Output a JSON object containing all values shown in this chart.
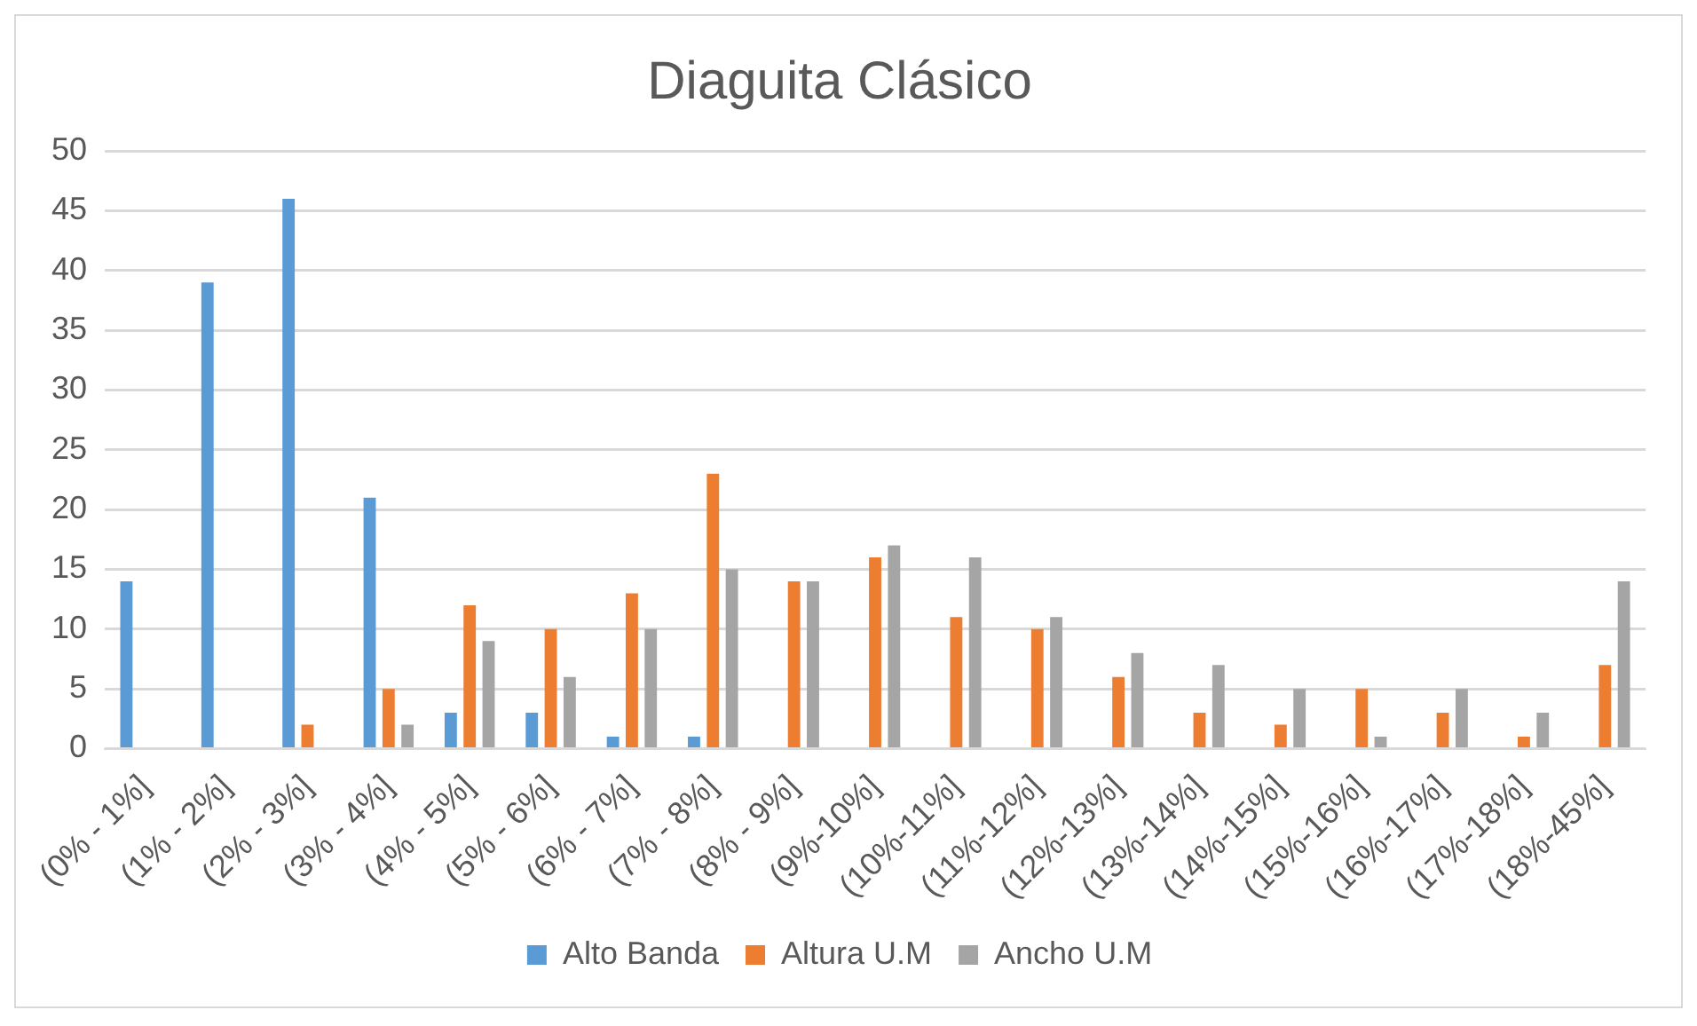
{
  "chart_data": {
    "type": "bar",
    "title": "Diaguita Clásico",
    "categories": [
      "(0% - 1%]",
      "(1% - 2%]",
      "(2% - 3%]",
      "(3% - 4%]",
      "(4% - 5%]",
      "(5% - 6%]",
      "(6% - 7%]",
      "(7% - 8%]",
      "(8% - 9%]",
      "(9%-10%]",
      "(10%-11%]",
      "(11%-12%]",
      "(12%-13%]",
      "(13%-14%]",
      "(14%-15%]",
      "(15%-16%]",
      "(16%-17%]",
      "(17%-18%]",
      "(18%-45%]"
    ],
    "series": [
      {
        "name": "Alto Banda",
        "color": "#5b9bd5",
        "values": [
          14,
          39,
          46,
          21,
          3,
          3,
          1,
          1,
          0,
          0,
          0,
          0,
          0,
          0,
          0,
          0,
          0,
          0,
          0
        ]
      },
      {
        "name": "Altura U.M",
        "color": "#ed7d31",
        "values": [
          0,
          0,
          2,
          5,
          12,
          10,
          13,
          23,
          14,
          16,
          11,
          10,
          6,
          3,
          2,
          5,
          3,
          1,
          7
        ]
      },
      {
        "name": "Ancho U.M",
        "color": "#a5a5a5",
        "values": [
          0,
          0,
          0,
          2,
          9,
          6,
          10,
          15,
          14,
          17,
          16,
          11,
          8,
          7,
          5,
          1,
          5,
          3,
          14
        ]
      }
    ],
    "ylim": [
      0,
      50
    ],
    "yticks": [
      0,
      5,
      10,
      15,
      20,
      25,
      30,
      35,
      40,
      45,
      50
    ],
    "grid": "y",
    "legend": "bottom"
  }
}
